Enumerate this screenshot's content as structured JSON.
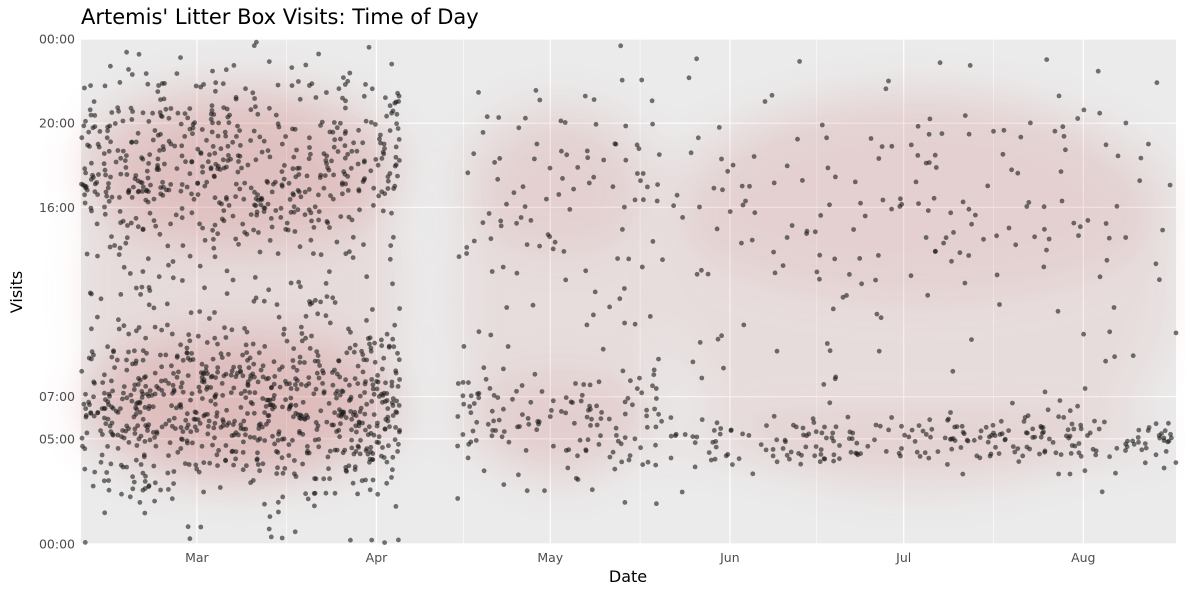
{
  "chart_data": {
    "type": "scatter",
    "title": "Artemis' Litter Box Visits: Time of Day",
    "xlabel": "Date",
    "ylabel": "Visits",
    "x_ticks": [
      {
        "label": "Mar",
        "date": "03-01"
      },
      {
        "label": "Apr",
        "date": "04-01"
      },
      {
        "label": "May",
        "date": "05-01"
      },
      {
        "label": "Jun",
        "date": "06-01"
      },
      {
        "label": "Jul",
        "date": "07-01"
      },
      {
        "label": "Aug",
        "date": "08-01"
      }
    ],
    "xlim": [
      "02-10",
      "08-17"
    ],
    "y_ticks": [
      {
        "label": "00:00",
        "hour": 0
      },
      {
        "label": "05:00",
        "hour": 5
      },
      {
        "label": "07:00",
        "hour": 7
      },
      {
        "label": "16:00",
        "hour": 16
      },
      {
        "label": "20:00",
        "hour": 20
      },
      {
        "label": "00:00",
        "hour": 24
      }
    ],
    "ylim": [
      0,
      24
    ],
    "grid": true,
    "density_overlay": true,
    "colors": {
      "panel": "#ebebeb",
      "grid": "#ffffff",
      "points": "#1a1a1a",
      "density": "#c05050"
    },
    "segments": [
      {
        "start": "02-10",
        "end": "04-05",
        "visits_per_day": 40,
        "clusters": [
          {
            "hour": 6.5,
            "sd": 2.2,
            "w": 0.52
          },
          {
            "hour": 18.0,
            "sd": 2.4,
            "w": 0.4
          },
          {
            "hour": 12.0,
            "sd": 5.5,
            "w": 0.08
          }
        ]
      },
      {
        "start": "04-15",
        "end": "05-20",
        "visits_per_day": 7,
        "clusters": [
          {
            "hour": 5.8,
            "sd": 1.3,
            "w": 0.55
          },
          {
            "hour": 17.5,
            "sd": 2.2,
            "w": 0.25
          },
          {
            "hour": 11.5,
            "sd": 5.5,
            "w": 0.2
          }
        ]
      },
      {
        "start": "05-20",
        "end": "08-17",
        "visits_per_day": 5,
        "clusters": [
          {
            "hour": 4.9,
            "sd": 0.7,
            "w": 0.5
          },
          {
            "hour": 16.5,
            "sd": 3.0,
            "w": 0.3
          },
          {
            "hour": 12.0,
            "sd": 6.0,
            "w": 0.2
          }
        ]
      }
    ]
  }
}
